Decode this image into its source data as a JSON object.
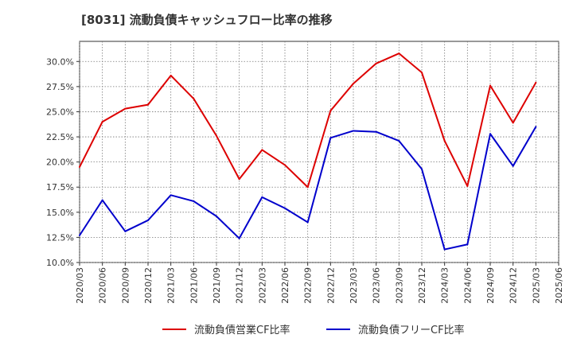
{
  "chart_data": {
    "type": "line",
    "title": "[8031]  流動負債キャッシュフロー比率の推移",
    "xlabel": "",
    "ylabel": "",
    "ylim": [
      10.0,
      32.0
    ],
    "y_ticks": [
      "10.0%",
      "12.5%",
      "15.0%",
      "17.5%",
      "20.0%",
      "22.5%",
      "25.0%",
      "27.5%",
      "30.0%"
    ],
    "y_tick_values": [
      10.0,
      12.5,
      15.0,
      17.5,
      20.0,
      22.5,
      25.0,
      27.5,
      30.0
    ],
    "categories": [
      "2020/03",
      "2020/06",
      "2020/09",
      "2020/12",
      "2021/03",
      "2021/06",
      "2021/09",
      "2021/12",
      "2022/03",
      "2022/06",
      "2022/09",
      "2022/12",
      "2023/03",
      "2023/06",
      "2023/09",
      "2023/12",
      "2024/03",
      "2024/06",
      "2024/09",
      "2024/12",
      "2025/03",
      "2025/06"
    ],
    "series": [
      {
        "name": "流動負債営業CF比率",
        "color": "#dd0000",
        "values": [
          19.5,
          24.0,
          25.3,
          25.7,
          28.6,
          26.3,
          22.6,
          18.3,
          21.2,
          19.7,
          17.5,
          25.1,
          27.8,
          29.8,
          30.8,
          28.9,
          22.1,
          17.6,
          27.6,
          23.9,
          27.9,
          null
        ]
      },
      {
        "name": "流動負債フリーCF比率",
        "color": "#0000cc",
        "values": [
          12.7,
          16.2,
          13.1,
          14.2,
          16.7,
          16.1,
          14.6,
          12.4,
          16.5,
          15.4,
          14.0,
          22.4,
          23.1,
          23.0,
          22.1,
          19.3,
          11.3,
          11.8,
          22.8,
          19.6,
          23.5,
          null
        ]
      }
    ],
    "grid": true,
    "legend_position": "bottom"
  }
}
